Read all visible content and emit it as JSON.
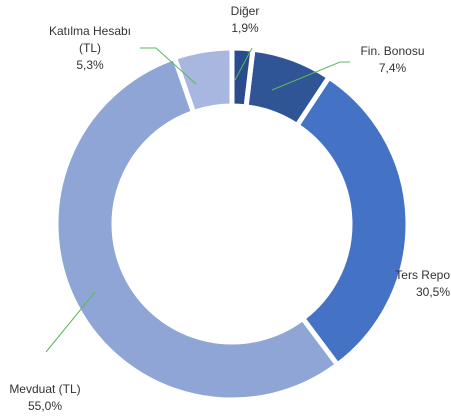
{
  "chart_data": {
    "type": "donut",
    "categories": [
      "Diğer",
      "Fin. Bonosu",
      "Ters Repo",
      "Mevduat (TL)",
      "Katılma Hesabı (TL)"
    ],
    "values": [
      1.9,
      7.4,
      30.5,
      55.0,
      5.3
    ],
    "value_labels": [
      "1,9%",
      "7,4%",
      "30,5%",
      "55,0%",
      "5,3%"
    ],
    "colors": [
      "#2b4c8c",
      "#2f5597",
      "#4472c4",
      "#8fa5d6",
      "#a7b7e0"
    ]
  }
}
